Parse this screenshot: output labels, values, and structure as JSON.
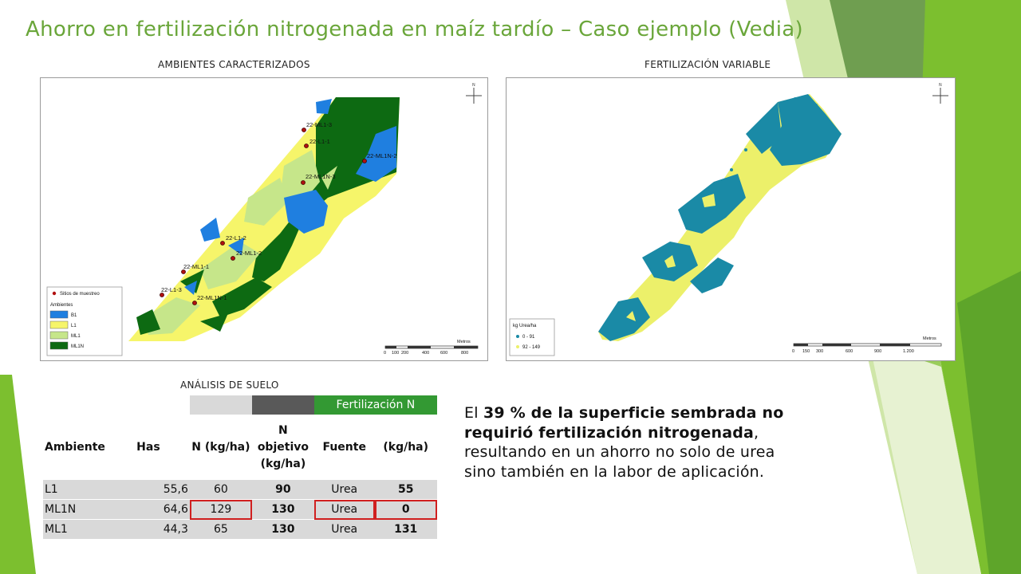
{
  "slide": {
    "title": "Ahorro en fertilización nitrogenada en maíz tardío – Caso ejemplo (Vedia)",
    "colors": {
      "title": "#6aa63a",
      "accent_green": "#339933",
      "deco_green": "#7cbf2f"
    }
  },
  "maps": {
    "left": {
      "caption": "AMBIENTES CARACTERIZADOS",
      "site_labels": [
        "22-ML1-3",
        "22-L1-1",
        "22-ML1N-2",
        "22-ML1N-3",
        "22-L1-2",
        "22-ML1-2",
        "22-ML1-1",
        "22-L1-3",
        "22-ML1N-1"
      ],
      "legend": {
        "points_label": "Sitios de muestreo",
        "group_label": "Ambientes",
        "items": [
          {
            "label": "B1",
            "color": "#1f7fe0"
          },
          {
            "label": "L1",
            "color": "#f6f56a"
          },
          {
            "label": "ML1",
            "color": "#c6e68a"
          },
          {
            "label": "ML1N",
            "color": "#0d6a12"
          }
        ]
      },
      "scale": {
        "unit": "Metros",
        "ticks": [
          "0",
          "100",
          "200",
          "400",
          "600",
          "800"
        ]
      }
    },
    "right": {
      "caption": "FERTILIZACIÓN VARIABLE",
      "legend": {
        "title": "kg Urea/ha",
        "items": [
          {
            "label": "0 - 91",
            "color": "#1a8aa6"
          },
          {
            "label": "92 - 149",
            "color": "#ecf06a"
          }
        ]
      },
      "scale": {
        "unit": "Metros",
        "ticks": [
          "0",
          "150",
          "300",
          "600",
          "900",
          "1.200"
        ]
      }
    }
  },
  "table": {
    "caption": "ANÁLISIS DE SUELO",
    "group_header": "Fertilización N",
    "headers": [
      "Ambiente",
      "Has",
      "N (kg/ha)",
      "N objetivo (kg/ha)",
      "Fuente",
      "(kg/ha)"
    ],
    "rows": [
      {
        "ambiente": "L1",
        "has": "55,6",
        "n": "60",
        "objetivo": "90",
        "fuente": "Urea",
        "dosis": "55"
      },
      {
        "ambiente": "ML1N",
        "has": "64,6",
        "n": "129",
        "objetivo": "130",
        "fuente": "Urea",
        "dosis": "0"
      },
      {
        "ambiente": "ML1",
        "has": "44,3",
        "n": "65",
        "objetivo": "130",
        "fuente": "Urea",
        "dosis": "131"
      }
    ]
  },
  "paragraph": {
    "p1": "El ",
    "b1": "39 % de la superficie sembrada no requirió fertilización nitrogenada",
    "p2": ", resultando en un ahorro no solo de urea sino también en la labor de aplicación."
  }
}
